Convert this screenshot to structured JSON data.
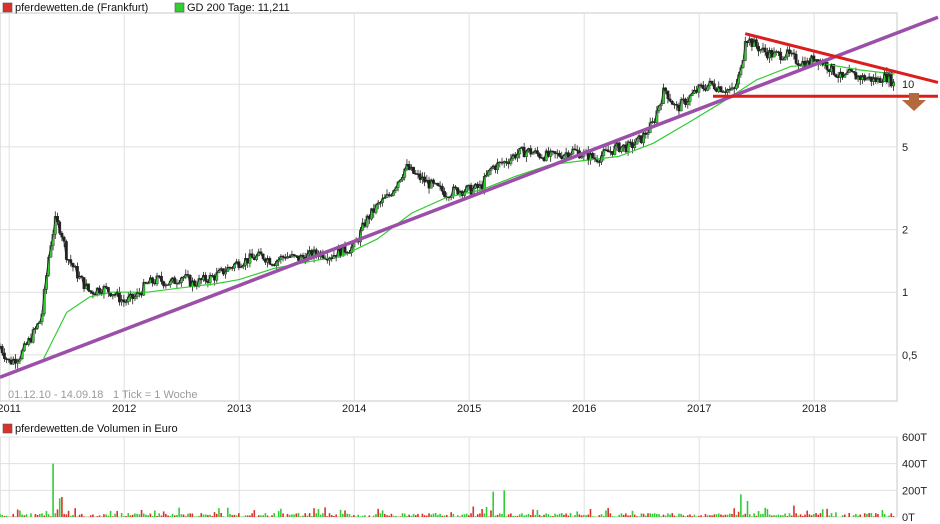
{
  "chart_data": [
    {
      "type": "candlestick",
      "legend": [
        {
          "label": "pferdewetten.de (Frankfurt)",
          "color": "#d9312b"
        },
        {
          "label": "GD 200 Tage: 11,211",
          "color": "#33cc33"
        }
      ],
      "date_range_label": "01.12.10 - 14.09.18",
      "tick_label": "1 Tick = 1 Woche",
      "y_scale": "log",
      "y_ticks": [
        0.5,
        1,
        2,
        5,
        10
      ],
      "y_tick_labels": [
        "0,5",
        "1",
        "2",
        "5",
        "10"
      ],
      "x_ticks": [
        "2011",
        "2012",
        "2013",
        "2014",
        "2015",
        "2016",
        "2017",
        "2018"
      ],
      "ylim": [
        0.3,
        22
      ],
      "xlim": [
        2010.92,
        2018.72
      ],
      "price_path": [
        [
          2010.92,
          0.55
        ],
        [
          2011.0,
          0.46
        ],
        [
          2011.1,
          0.5
        ],
        [
          2011.2,
          0.62
        ],
        [
          2011.28,
          0.75
        ],
        [
          2011.35,
          1.6
        ],
        [
          2011.4,
          2.2
        ],
        [
          2011.45,
          2.0
        ],
        [
          2011.5,
          1.5
        ],
        [
          2011.6,
          1.2
        ],
        [
          2011.7,
          1.0
        ],
        [
          2011.8,
          1.05
        ],
        [
          2011.9,
          1.0
        ],
        [
          2012.0,
          0.9
        ],
        [
          2012.1,
          0.95
        ],
        [
          2012.2,
          1.1
        ],
        [
          2012.3,
          1.15
        ],
        [
          2012.4,
          1.1
        ],
        [
          2012.5,
          1.2
        ],
        [
          2012.6,
          1.1
        ],
        [
          2012.7,
          1.15
        ],
        [
          2012.8,
          1.2
        ],
        [
          2012.9,
          1.3
        ],
        [
          2013.0,
          1.4
        ],
        [
          2013.1,
          1.45
        ],
        [
          2013.2,
          1.5
        ],
        [
          2013.3,
          1.4
        ],
        [
          2013.4,
          1.5
        ],
        [
          2013.5,
          1.45
        ],
        [
          2013.6,
          1.5
        ],
        [
          2013.7,
          1.55
        ],
        [
          2013.8,
          1.5
        ],
        [
          2013.9,
          1.6
        ],
        [
          2014.0,
          1.65
        ],
        [
          2014.1,
          2.2
        ],
        [
          2014.2,
          2.6
        ],
        [
          2014.3,
          2.9
        ],
        [
          2014.4,
          3.6
        ],
        [
          2014.45,
          4.0
        ],
        [
          2014.55,
          3.6
        ],
        [
          2014.7,
          3.2
        ],
        [
          2014.8,
          3.0
        ],
        [
          2014.9,
          3.1
        ],
        [
          2015.0,
          3.1
        ],
        [
          2015.1,
          3.2
        ],
        [
          2015.2,
          4.0
        ],
        [
          2015.3,
          4.2
        ],
        [
          2015.4,
          4.6
        ],
        [
          2015.5,
          4.8
        ],
        [
          2015.6,
          4.6
        ],
        [
          2015.7,
          4.5
        ],
        [
          2015.8,
          4.6
        ],
        [
          2015.9,
          4.8
        ],
        [
          2016.0,
          4.6
        ],
        [
          2016.1,
          4.4
        ],
        [
          2016.2,
          4.7
        ],
        [
          2016.3,
          5.0
        ],
        [
          2016.4,
          5.0
        ],
        [
          2016.5,
          5.5
        ],
        [
          2016.6,
          6.5
        ],
        [
          2016.65,
          8.0
        ],
        [
          2016.7,
          9.5
        ],
        [
          2016.8,
          7.6
        ],
        [
          2016.9,
          8.5
        ],
        [
          2017.0,
          9.5
        ],
        [
          2017.1,
          10.0
        ],
        [
          2017.2,
          9.6
        ],
        [
          2017.3,
          9.2
        ],
        [
          2017.37,
          12.0
        ],
        [
          2017.4,
          17.0
        ],
        [
          2017.45,
          16.0
        ],
        [
          2017.55,
          14.5
        ],
        [
          2017.65,
          13.8
        ],
        [
          2017.75,
          14.0
        ],
        [
          2017.85,
          13.0
        ],
        [
          2017.95,
          12.5
        ],
        [
          2018.0,
          13.5
        ],
        [
          2018.1,
          12.5
        ],
        [
          2018.2,
          11.2
        ],
        [
          2018.25,
          10.5
        ],
        [
          2018.3,
          11.2
        ],
        [
          2018.4,
          10.8
        ],
        [
          2018.5,
          10.6
        ],
        [
          2018.55,
          10.4
        ],
        [
          2018.6,
          11.0
        ],
        [
          2018.65,
          10.8
        ],
        [
          2018.7,
          9.9
        ]
      ],
      "gd200_path": [
        [
          2011.3,
          0.48
        ],
        [
          2011.5,
          0.8
        ],
        [
          2011.7,
          0.95
        ],
        [
          2011.9,
          1.0
        ],
        [
          2012.2,
          1.0
        ],
        [
          2012.5,
          1.05
        ],
        [
          2012.8,
          1.1
        ],
        [
          2013.0,
          1.15
        ],
        [
          2013.3,
          1.3
        ],
        [
          2013.6,
          1.4
        ],
        [
          2013.9,
          1.5
        ],
        [
          2014.2,
          1.8
        ],
        [
          2014.5,
          2.4
        ],
        [
          2014.8,
          2.85
        ],
        [
          2015.1,
          3.1
        ],
        [
          2015.4,
          3.6
        ],
        [
          2015.7,
          4.1
        ],
        [
          2016.0,
          4.3
        ],
        [
          2016.3,
          4.5
        ],
        [
          2016.6,
          5.2
        ],
        [
          2016.9,
          6.5
        ],
        [
          2017.2,
          8.2
        ],
        [
          2017.5,
          10.5
        ],
        [
          2017.8,
          12.2
        ],
        [
          2018.1,
          12.5
        ],
        [
          2018.4,
          11.7
        ],
        [
          2018.7,
          11.2
        ]
      ],
      "trend_support": [
        [
          2010.92,
          0.39
        ],
        [
          2018.72,
          21.0
        ]
      ],
      "trend_resistance": [
        [
          2017.4,
          17.5
        ],
        [
          2018.72,
          10.2
        ]
      ],
      "horizontal_support": {
        "from": 2017.12,
        "to": 2018.72,
        "value": 8.75
      },
      "colors": {
        "up_candle": "#33cc33",
        "down_candle": "#222222",
        "gd200": "#33cc33",
        "support_line": "#9b4fa8",
        "resistance_line": "#dd1c1c",
        "arrow": "#b4683e",
        "grid": "#e0e0e0"
      }
    },
    {
      "type": "bar",
      "legend": [
        {
          "label": "pferdewetten.de Volumen in Euro",
          "color": "#d9312b"
        }
      ],
      "y_ticks": [
        0,
        200,
        400,
        600
      ],
      "y_tick_labels": [
        "0T",
        "200T",
        "400T",
        "600T"
      ],
      "ylim": [
        0,
        600
      ],
      "volume_spikes": [
        {
          "x": 2011.38,
          "value": 400
        },
        {
          "x": 2011.43,
          "value": 140
        },
        {
          "x": 2011.46,
          "value": 150
        },
        {
          "x": 2015.2,
          "value": 190
        },
        {
          "x": 2015.3,
          "value": 200
        },
        {
          "x": 2017.37,
          "value": 170
        },
        {
          "x": 2017.42,
          "value": 120
        }
      ]
    }
  ]
}
